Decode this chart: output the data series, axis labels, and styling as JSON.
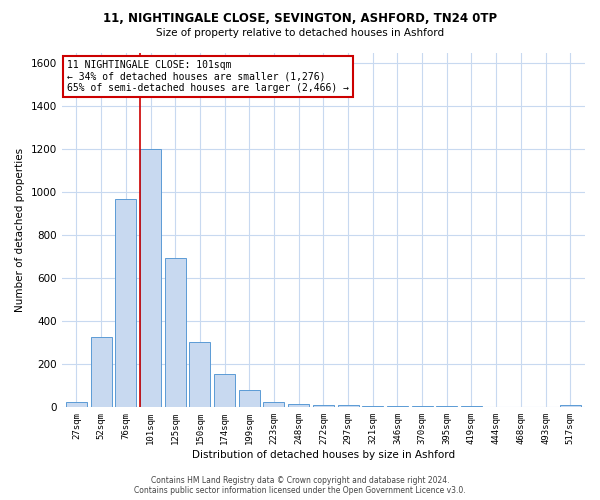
{
  "title": "11, NIGHTINGALE CLOSE, SEVINGTON, ASHFORD, TN24 0TP",
  "subtitle": "Size of property relative to detached houses in Ashford",
  "xlabel": "Distribution of detached houses by size in Ashford",
  "ylabel": "Number of detached properties",
  "categories": [
    "27sqm",
    "52sqm",
    "76sqm",
    "101sqm",
    "125sqm",
    "150sqm",
    "174sqm",
    "199sqm",
    "223sqm",
    "248sqm",
    "272sqm",
    "297sqm",
    "321sqm",
    "346sqm",
    "370sqm",
    "395sqm",
    "419sqm",
    "444sqm",
    "468sqm",
    "493sqm",
    "517sqm"
  ],
  "values": [
    25,
    325,
    970,
    1200,
    695,
    305,
    155,
    80,
    25,
    15,
    12,
    10,
    5,
    5,
    5,
    5,
    5,
    3,
    0,
    0,
    12
  ],
  "bar_color": "#c8d9f0",
  "bar_edge_color": "#5b9bd5",
  "background_color": "#ffffff",
  "grid_color": "#c8d9f0",
  "redline_index": 3,
  "annotation_title": "11 NIGHTINGALE CLOSE: 101sqm",
  "annotation_line1": "← 34% of detached houses are smaller (1,276)",
  "annotation_line2": "65% of semi-detached houses are larger (2,466) →",
  "annotation_box_color": "#ffffff",
  "annotation_box_edge_color": "#cc0000",
  "redline_color": "#cc0000",
  "ylim": [
    0,
    1650
  ],
  "yticks": [
    0,
    200,
    400,
    600,
    800,
    1000,
    1200,
    1400,
    1600
  ],
  "footer1": "Contains HM Land Registry data © Crown copyright and database right 2024.",
  "footer2": "Contains public sector information licensed under the Open Government Licence v3.0."
}
